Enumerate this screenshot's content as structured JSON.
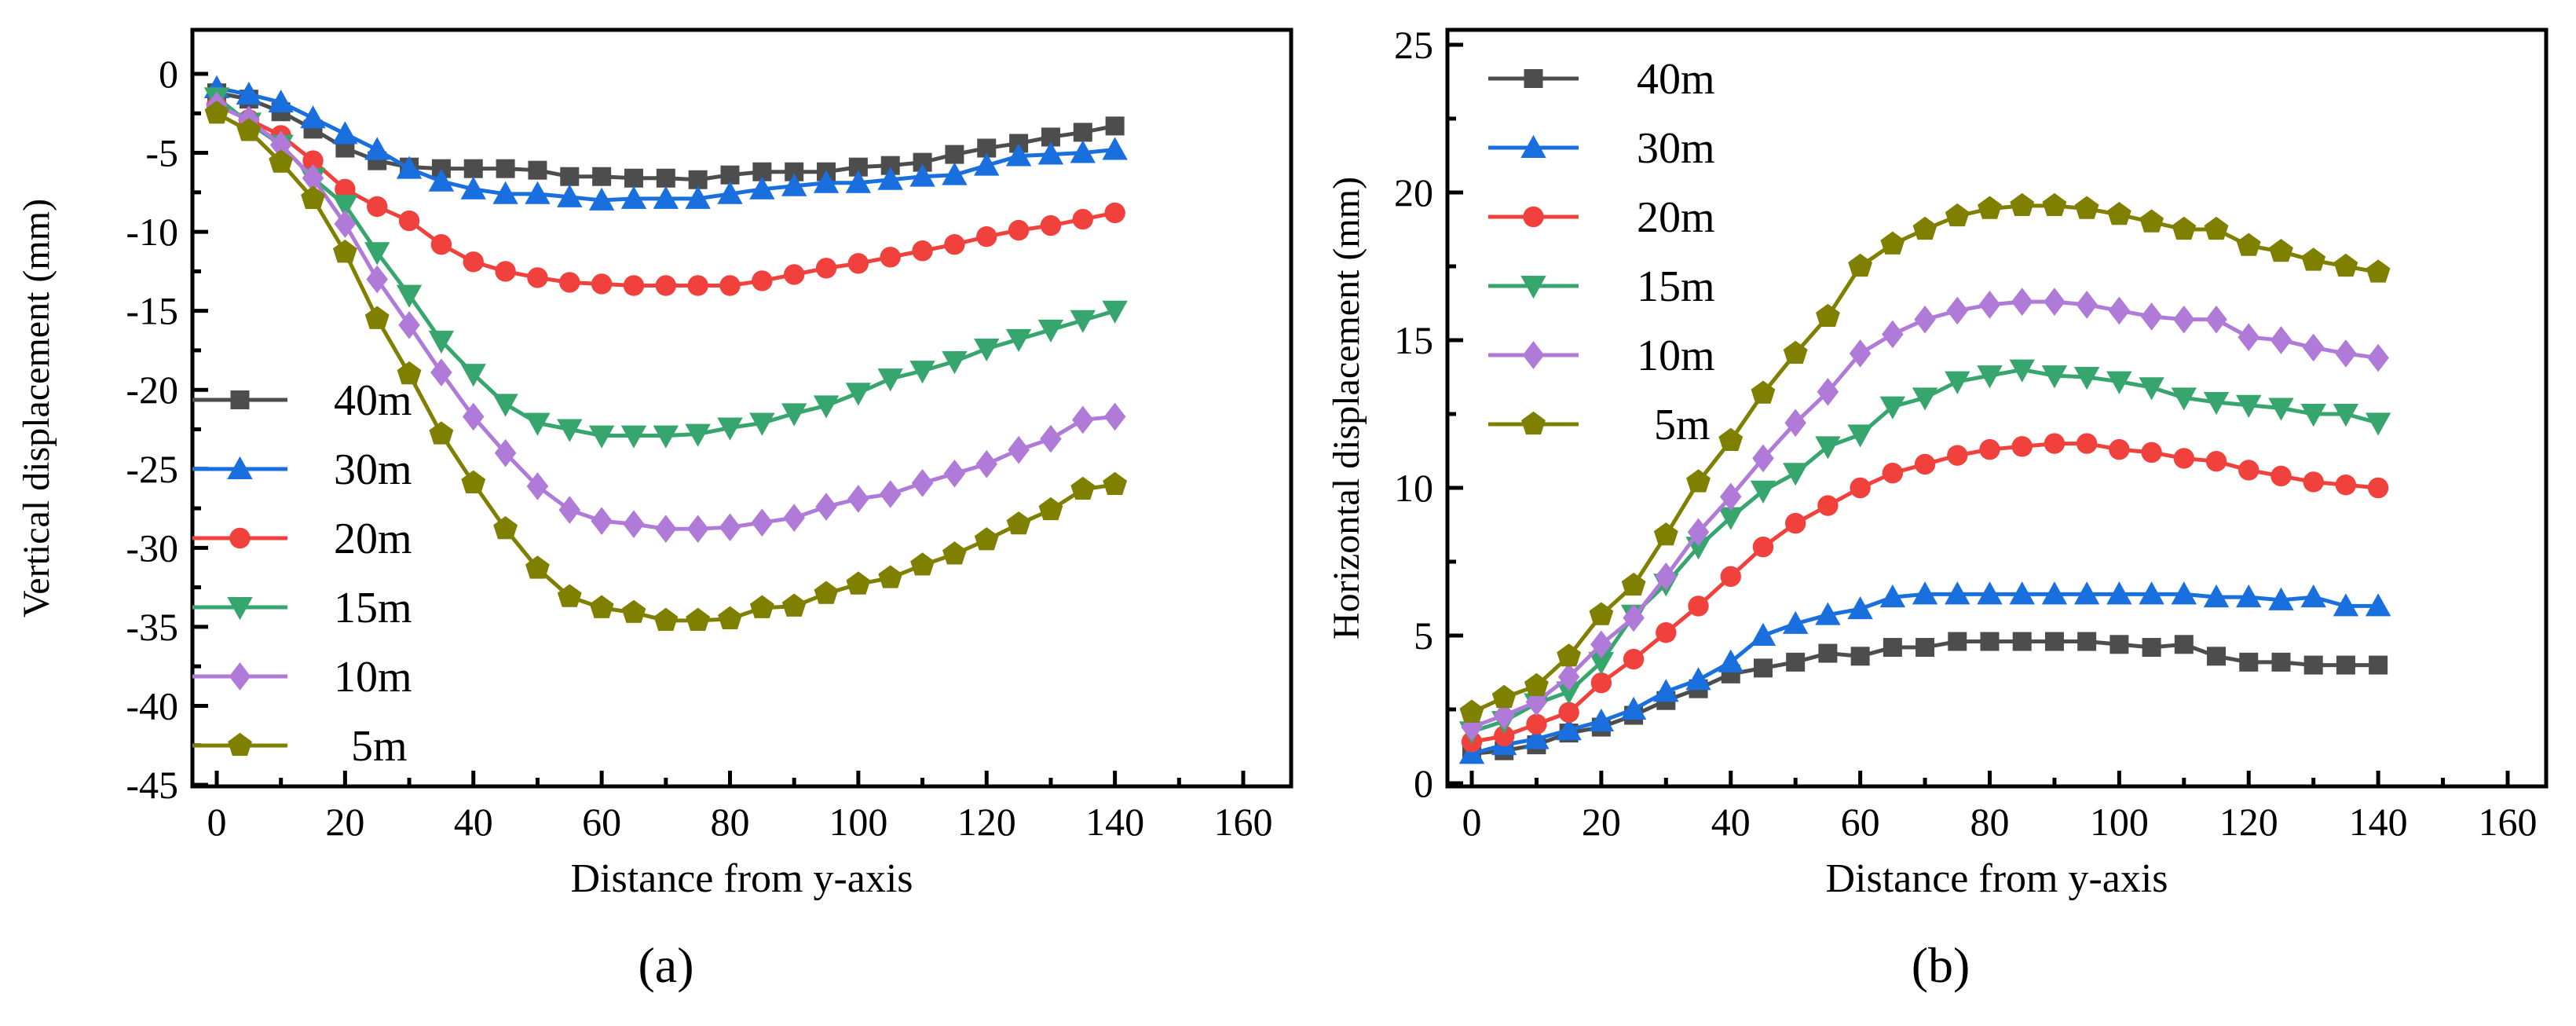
{
  "chart_data": [
    {
      "type": "line",
      "panel_label": "(a)",
      "title": "",
      "xlabel": "Distance from y-axis",
      "ylabel": "Vertical displacement (mm)",
      "xlim": [
        0,
        160
      ],
      "ylim": [
        -45,
        0
      ],
      "xticks": [
        0,
        20,
        40,
        60,
        80,
        100,
        120,
        140,
        160
      ],
      "yticks": [
        0,
        -5,
        -10,
        -15,
        -20,
        -25,
        -30,
        -35,
        -40,
        -45
      ],
      "grid": false,
      "legend_position": "left",
      "x": [
        0,
        5,
        10,
        15,
        20,
        25,
        30,
        35,
        40,
        45,
        50,
        55,
        60,
        65,
        70,
        75,
        80,
        85,
        90,
        95,
        100,
        105,
        110,
        115,
        120,
        125,
        130,
        135,
        140
      ],
      "series": [
        {
          "name": "40m",
          "color": "#4d4d4d",
          "marker": "square",
          "values": [
            -1.2,
            -1.6,
            -2.4,
            -3.5,
            -4.7,
            -5.5,
            -5.9,
            -6.0,
            -6.0,
            -6.0,
            -6.1,
            -6.5,
            -6.5,
            -6.6,
            -6.6,
            -6.7,
            -6.4,
            -6.2,
            -6.2,
            -6.2,
            -5.9,
            -5.8,
            -5.6,
            -5.1,
            -4.7,
            -4.4,
            -4.0,
            -3.7,
            -3.3
          ]
        },
        {
          "name": "30m",
          "color": "#1a6fdf",
          "marker": "triangle-up",
          "values": [
            -0.9,
            -1.3,
            -1.8,
            -2.8,
            -3.8,
            -4.8,
            -6.0,
            -6.8,
            -7.3,
            -7.6,
            -7.6,
            -7.8,
            -8.0,
            -7.9,
            -7.9,
            -7.9,
            -7.6,
            -7.3,
            -7.1,
            -6.9,
            -6.9,
            -6.7,
            -6.5,
            -6.4,
            -5.8,
            -5.2,
            -5.1,
            -5.0,
            -4.8
          ]
        },
        {
          "name": "20m",
          "color": "#f0413c",
          "marker": "circle",
          "values": [
            -2.0,
            -2.9,
            -3.9,
            -5.5,
            -7.3,
            -8.4,
            -9.3,
            -10.8,
            -11.9,
            -12.5,
            -12.9,
            -13.2,
            -13.3,
            -13.4,
            -13.4,
            -13.4,
            -13.4,
            -13.1,
            -12.7,
            -12.3,
            -12.0,
            -11.6,
            -11.2,
            -10.8,
            -10.3,
            -9.9,
            -9.6,
            -9.2,
            -8.8
          ]
        },
        {
          "name": "15m",
          "color": "#37a56e",
          "marker": "triangle-down",
          "values": [
            -1.5,
            -3.1,
            -4.5,
            -6.6,
            -8.3,
            -11.3,
            -14.0,
            -16.9,
            -19.0,
            -20.9,
            -22.1,
            -22.5,
            -22.9,
            -22.9,
            -22.9,
            -22.8,
            -22.4,
            -22.1,
            -21.5,
            -21.0,
            -20.2,
            -19.3,
            -18.8,
            -18.2,
            -17.4,
            -16.8,
            -16.2,
            -15.6,
            -15.0
          ]
        },
        {
          "name": "10m",
          "color": "#b07ad8",
          "marker": "diamond",
          "values": [
            -2.0,
            -2.9,
            -4.5,
            -6.6,
            -9.5,
            -13.0,
            -15.9,
            -18.9,
            -21.7,
            -24.0,
            -26.1,
            -27.6,
            -28.3,
            -28.5,
            -28.8,
            -28.8,
            -28.7,
            -28.4,
            -28.1,
            -27.4,
            -26.9,
            -26.6,
            -25.9,
            -25.3,
            -24.7,
            -23.8,
            -23.1,
            -21.9,
            -21.7
          ]
        },
        {
          "name": "5m",
          "color": "#7f7f00",
          "marker": "pentagon",
          "values": [
            -2.5,
            -3.6,
            -5.6,
            -7.9,
            -11.3,
            -15.5,
            -19.0,
            -22.8,
            -25.9,
            -28.8,
            -31.3,
            -33.1,
            -33.8,
            -34.1,
            -34.6,
            -34.6,
            -34.5,
            -33.8,
            -33.7,
            -32.9,
            -32.3,
            -31.9,
            -31.1,
            -30.4,
            -29.5,
            -28.5,
            -27.6,
            -26.3,
            -26.0
          ]
        }
      ]
    },
    {
      "type": "line",
      "panel_label": "(b)",
      "title": "",
      "xlabel": "Distance from y-axis",
      "ylabel": "Horizontal displacement (mm)",
      "xlim": [
        0,
        160
      ],
      "ylim": [
        0,
        25
      ],
      "xticks": [
        0,
        20,
        40,
        60,
        80,
        100,
        120,
        140,
        160
      ],
      "yticks": [
        0,
        5,
        10,
        15,
        20,
        25
      ],
      "grid": false,
      "legend_position": "top-left",
      "x": [
        0,
        5,
        10,
        15,
        20,
        25,
        30,
        35,
        40,
        45,
        50,
        55,
        60,
        65,
        70,
        75,
        80,
        85,
        90,
        95,
        100,
        105,
        110,
        115,
        120,
        125,
        130,
        135,
        140
      ],
      "series": [
        {
          "name": "40m",
          "color": "#4d4d4d",
          "marker": "square",
          "values": [
            1.0,
            1.1,
            1.3,
            1.7,
            1.9,
            2.3,
            2.8,
            3.2,
            3.7,
            3.9,
            4.1,
            4.4,
            4.3,
            4.6,
            4.6,
            4.8,
            4.8,
            4.8,
            4.8,
            4.8,
            4.7,
            4.6,
            4.7,
            4.3,
            4.1,
            4.1,
            4.0,
            4.0,
            4.0
          ]
        },
        {
          "name": "30m",
          "color": "#1a6fdf",
          "marker": "triangle-up",
          "values": [
            1.0,
            1.3,
            1.5,
            1.8,
            2.1,
            2.5,
            3.1,
            3.5,
            4.1,
            5.0,
            5.4,
            5.7,
            5.9,
            6.3,
            6.4,
            6.4,
            6.4,
            6.4,
            6.4,
            6.4,
            6.4,
            6.4,
            6.4,
            6.3,
            6.3,
            6.2,
            6.3,
            6.0,
            6.0
          ]
        },
        {
          "name": "20m",
          "color": "#f0413c",
          "marker": "circle",
          "values": [
            1.4,
            1.6,
            2.0,
            2.4,
            3.4,
            4.2,
            5.1,
            6.0,
            7.0,
            8.0,
            8.8,
            9.4,
            10.0,
            10.5,
            10.8,
            11.1,
            11.3,
            11.4,
            11.5,
            11.5,
            11.3,
            11.2,
            11.0,
            10.9,
            10.6,
            10.4,
            10.2,
            10.1,
            10.0
          ]
        },
        {
          "name": "15m",
          "color": "#37a56e",
          "marker": "triangle-down",
          "values": [
            1.75,
            2.1,
            2.7,
            3.1,
            4.1,
            5.7,
            6.75,
            8.0,
            9.0,
            9.9,
            10.5,
            11.4,
            11.8,
            12.75,
            13.05,
            13.6,
            13.8,
            14.0,
            13.8,
            13.75,
            13.6,
            13.4,
            13.05,
            12.9,
            12.8,
            12.7,
            12.5,
            12.5,
            12.2
          ]
        },
        {
          "name": "10m",
          "color": "#b07ad8",
          "marker": "diamond",
          "values": [
            1.9,
            2.3,
            2.75,
            3.6,
            4.7,
            5.6,
            7.0,
            8.5,
            9.7,
            11.0,
            12.2,
            13.25,
            14.55,
            15.2,
            15.7,
            16.0,
            16.2,
            16.3,
            16.3,
            16.2,
            16.0,
            15.8,
            15.7,
            15.7,
            15.1,
            15.0,
            14.75,
            14.55,
            14.4
          ]
        },
        {
          "name": "5m",
          "color": "#7f7f00",
          "marker": "pentagon",
          "values": [
            2.4,
            2.9,
            3.3,
            4.3,
            5.7,
            6.7,
            8.4,
            10.2,
            11.6,
            13.2,
            14.55,
            15.8,
            17.5,
            18.25,
            18.75,
            19.2,
            19.45,
            19.55,
            19.55,
            19.45,
            19.25,
            19.0,
            18.75,
            18.75,
            18.2,
            18.0,
            17.7,
            17.5,
            17.3
          ]
        }
      ]
    }
  ]
}
